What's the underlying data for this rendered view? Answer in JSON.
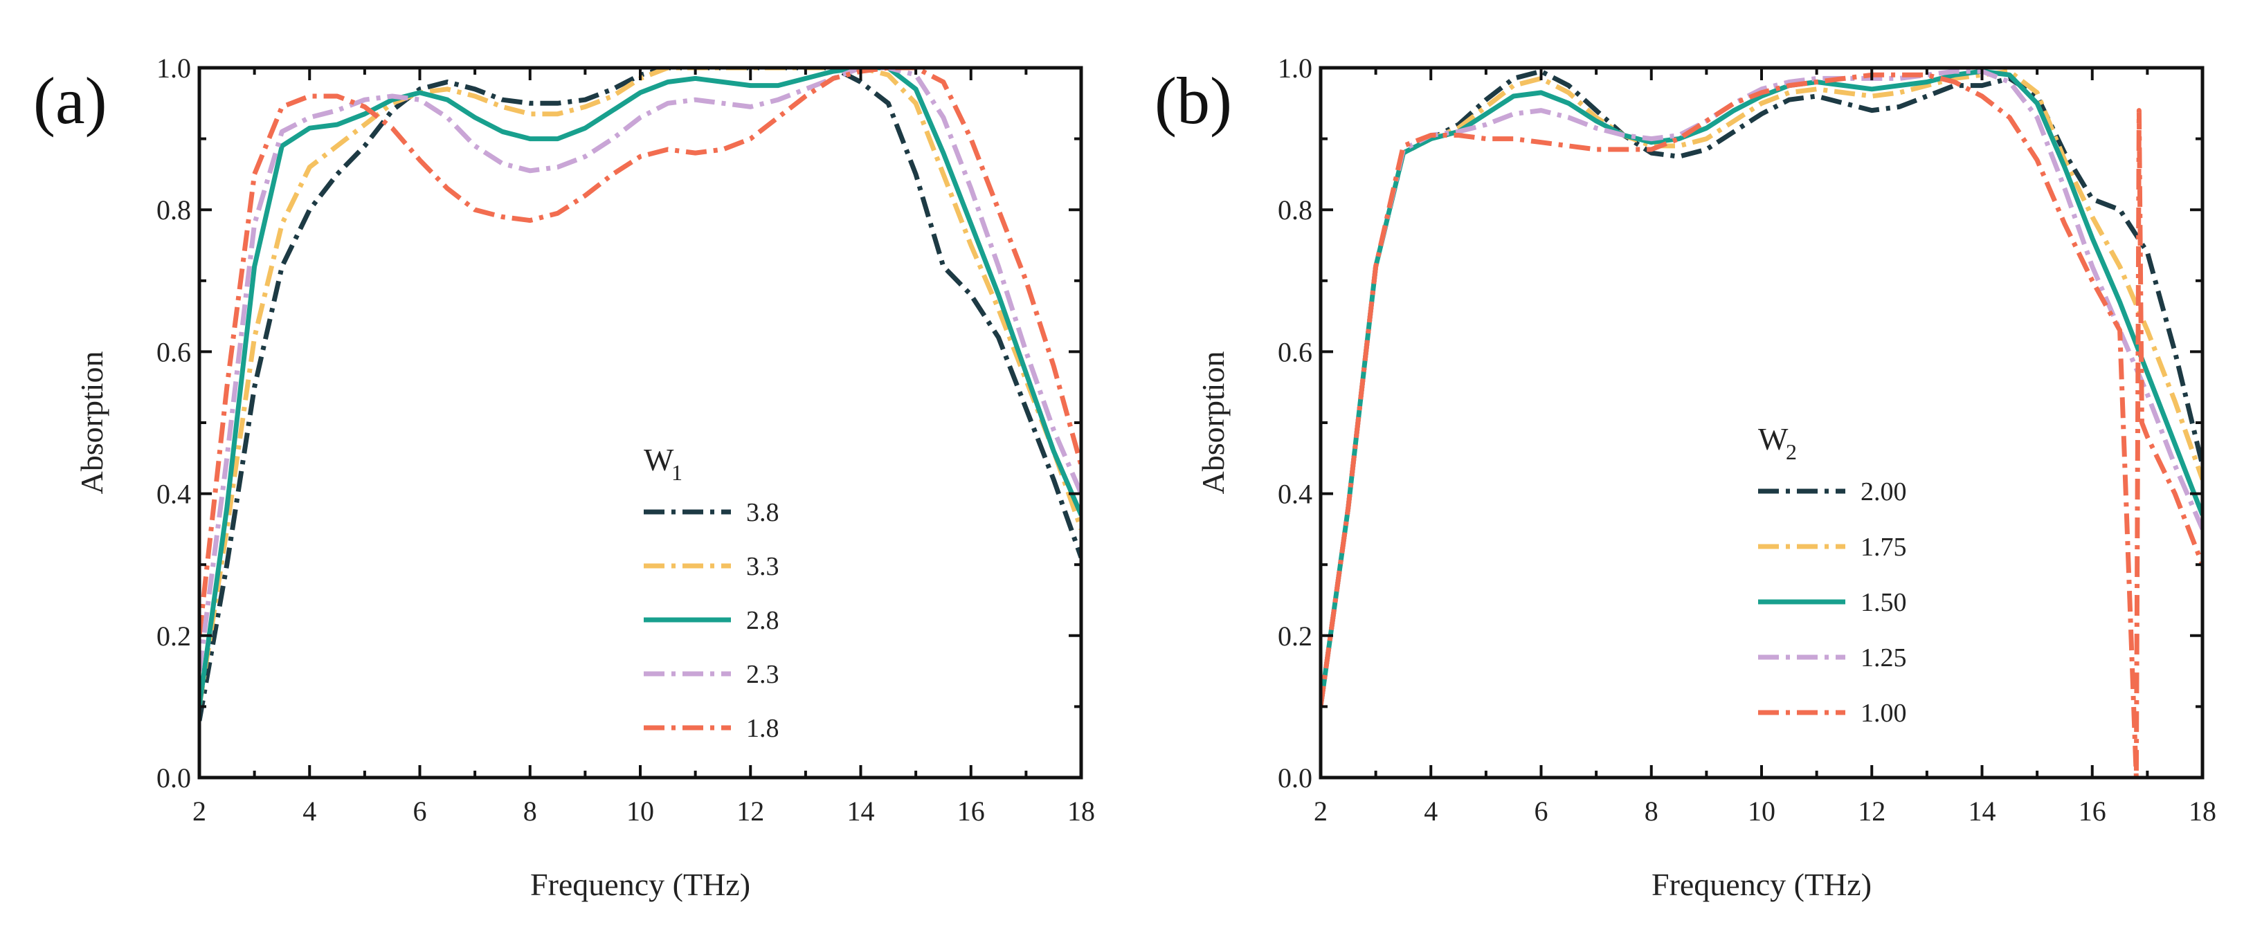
{
  "chart_data": [
    {
      "type": "line",
      "panel_label": "(a)",
      "xlabel": "Frequency (THz)",
      "ylabel": "Absorption",
      "xlim": [
        2,
        18
      ],
      "ylim": [
        0,
        1.0
      ],
      "xticks": [
        2,
        4,
        6,
        8,
        10,
        12,
        14,
        16,
        18
      ],
      "xtick_labels": [
        "2",
        "4",
        "6",
        "8",
        "10",
        "12",
        "14",
        "16",
        "18"
      ],
      "yticks": [
        0,
        0.2,
        0.4,
        0.6,
        0.8,
        1.0
      ],
      "ytick_labels": [
        "0.0",
        "0.2",
        "0.4",
        "0.6",
        "0.8",
        "1.0"
      ],
      "grid": false,
      "legend": {
        "title": "W",
        "title_sub": "1",
        "placement": "center"
      },
      "series": [
        {
          "name": "3.8",
          "color": "#1d3a44",
          "dash": "dashdot",
          "x": [
            2,
            2.5,
            3,
            3.5,
            4,
            4.5,
            5,
            5.5,
            6,
            6.5,
            7,
            7.5,
            8,
            8.5,
            9,
            9.5,
            10,
            10.5,
            11,
            11.5,
            12,
            12.5,
            13,
            13.5,
            14,
            14.5,
            15,
            15.5,
            16,
            16.5,
            17,
            17.5,
            18
          ],
          "y": [
            0.08,
            0.3,
            0.55,
            0.72,
            0.8,
            0.85,
            0.89,
            0.94,
            0.97,
            0.98,
            0.97,
            0.955,
            0.95,
            0.95,
            0.955,
            0.97,
            0.99,
            1.0,
            1.0,
            1.0,
            1.0,
            1.0,
            1.0,
            1.0,
            0.98,
            0.95,
            0.85,
            0.72,
            0.68,
            0.62,
            0.52,
            0.42,
            0.31
          ]
        },
        {
          "name": "3.3",
          "color": "#f5c160",
          "dash": "dashdot",
          "x": [
            2,
            2.5,
            3,
            3.5,
            4,
            4.5,
            5,
            5.5,
            6,
            6.5,
            7,
            7.5,
            8,
            8.5,
            9,
            9.5,
            10,
            10.5,
            11,
            11.5,
            12,
            12.5,
            13,
            13.5,
            14,
            14.5,
            15,
            15.5,
            16,
            16.5,
            17,
            17.5,
            18
          ],
          "y": [
            0.1,
            0.35,
            0.62,
            0.78,
            0.86,
            0.89,
            0.92,
            0.95,
            0.965,
            0.97,
            0.96,
            0.945,
            0.935,
            0.935,
            0.945,
            0.96,
            0.985,
            1.0,
            1.0,
            1.0,
            1.0,
            1.0,
            1.0,
            1.0,
            1.0,
            0.99,
            0.95,
            0.85,
            0.75,
            0.66,
            0.56,
            0.46,
            0.35
          ]
        },
        {
          "name": "2.8",
          "color": "#18a08e",
          "dash": "solid",
          "x": [
            2,
            2.5,
            3,
            3.5,
            4,
            4.5,
            5,
            5.5,
            6,
            6.5,
            7,
            7.5,
            8,
            8.5,
            9,
            9.5,
            10,
            10.5,
            11,
            11.5,
            12,
            12.5,
            13,
            13.5,
            14,
            14.5,
            15,
            15.5,
            16,
            16.5,
            17,
            17.5,
            18
          ],
          "y": [
            0.1,
            0.38,
            0.72,
            0.89,
            0.915,
            0.92,
            0.935,
            0.955,
            0.965,
            0.955,
            0.93,
            0.91,
            0.9,
            0.9,
            0.915,
            0.94,
            0.965,
            0.98,
            0.985,
            0.98,
            0.975,
            0.975,
            0.985,
            0.995,
            1.0,
            1.0,
            0.97,
            0.88,
            0.78,
            0.68,
            0.57,
            0.46,
            0.37
          ]
        },
        {
          "name": "2.3",
          "color": "#c9a5d6",
          "dash": "dashdot",
          "x": [
            2,
            2.5,
            3,
            3.5,
            4,
            4.5,
            5,
            5.5,
            6,
            6.5,
            7,
            7.5,
            8,
            8.5,
            9,
            9.5,
            10,
            10.5,
            11,
            11.5,
            12,
            12.5,
            13,
            13.5,
            14,
            14.5,
            15,
            15.5,
            16,
            16.5,
            17,
            17.5,
            18
          ],
          "y": [
            0.15,
            0.45,
            0.78,
            0.91,
            0.93,
            0.94,
            0.955,
            0.96,
            0.955,
            0.93,
            0.89,
            0.865,
            0.855,
            0.86,
            0.875,
            0.9,
            0.93,
            0.95,
            0.955,
            0.95,
            0.945,
            0.955,
            0.97,
            0.985,
            1.0,
            1.0,
            0.99,
            0.93,
            0.83,
            0.72,
            0.6,
            0.49,
            0.4
          ]
        },
        {
          "name": "1.8",
          "color": "#f26d50",
          "dash": "dashdot",
          "x": [
            2,
            2.5,
            3,
            3.5,
            4,
            4.5,
            5,
            5.5,
            6,
            6.5,
            7,
            7.5,
            8,
            8.5,
            9,
            9.5,
            10,
            10.5,
            11,
            11.5,
            12,
            12.5,
            13,
            13.5,
            14,
            14.5,
            15,
            15.5,
            16,
            16.5,
            17,
            17.5,
            18
          ],
          "y": [
            0.2,
            0.55,
            0.85,
            0.945,
            0.96,
            0.96,
            0.945,
            0.915,
            0.87,
            0.83,
            0.8,
            0.79,
            0.785,
            0.795,
            0.82,
            0.85,
            0.875,
            0.885,
            0.88,
            0.885,
            0.9,
            0.93,
            0.96,
            0.985,
            0.995,
            1.0,
            1.0,
            0.98,
            0.9,
            0.8,
            0.7,
            0.58,
            0.44
          ]
        }
      ]
    },
    {
      "type": "line",
      "panel_label": "(b)",
      "xlabel": "Frequency (THz)",
      "ylabel": "Absorption",
      "xlim": [
        2,
        18
      ],
      "ylim": [
        0,
        1.0
      ],
      "xticks": [
        2,
        4,
        6,
        8,
        10,
        12,
        14,
        16,
        18
      ],
      "xtick_labels": [
        "2",
        "4",
        "6",
        "8",
        "10",
        "12",
        "14",
        "16",
        "18"
      ],
      "yticks": [
        0,
        0.2,
        0.4,
        0.6,
        0.8,
        1.0
      ],
      "ytick_labels": [
        "0.0",
        "0.2",
        "0.4",
        "0.6",
        "0.8",
        "1.0"
      ],
      "grid": false,
      "legend": {
        "title": "W",
        "title_sub": "2",
        "placement": "center"
      },
      "series": [
        {
          "name": "2.00",
          "color": "#1d3a44",
          "dash": "dashdot",
          "x": [
            2,
            2.5,
            3,
            3.5,
            4,
            4.5,
            5,
            5.5,
            6,
            6.5,
            7,
            7.5,
            8,
            8.5,
            9,
            9.5,
            10,
            10.5,
            11,
            11.5,
            12,
            12.5,
            13,
            13.5,
            14,
            14.5,
            15,
            15.5,
            16,
            16.5,
            17,
            17.5,
            18
          ],
          "y": [
            0.1,
            0.38,
            0.72,
            0.88,
            0.9,
            0.92,
            0.955,
            0.985,
            0.995,
            0.975,
            0.94,
            0.905,
            0.88,
            0.875,
            0.885,
            0.91,
            0.935,
            0.955,
            0.96,
            0.95,
            0.94,
            0.945,
            0.96,
            0.975,
            0.975,
            0.985,
            0.96,
            0.88,
            0.815,
            0.8,
            0.74,
            0.6,
            0.44
          ]
        },
        {
          "name": "1.75",
          "color": "#f5c160",
          "dash": "dashdot",
          "x": [
            2,
            2.5,
            3,
            3.5,
            4,
            4.5,
            5,
            5.5,
            6,
            6.5,
            7,
            7.5,
            8,
            8.5,
            9,
            9.5,
            10,
            10.5,
            11,
            11.5,
            12,
            12.5,
            13,
            13.5,
            14,
            14.5,
            15,
            15.5,
            16,
            16.5,
            17,
            17.5,
            18
          ],
          "y": [
            0.1,
            0.38,
            0.72,
            0.88,
            0.9,
            0.915,
            0.945,
            0.975,
            0.985,
            0.965,
            0.93,
            0.905,
            0.89,
            0.89,
            0.9,
            0.925,
            0.95,
            0.965,
            0.97,
            0.965,
            0.96,
            0.965,
            0.975,
            0.985,
            0.99,
            0.995,
            0.965,
            0.87,
            0.79,
            0.72,
            0.63,
            0.53,
            0.42
          ]
        },
        {
          "name": "1.50",
          "color": "#18a08e",
          "dash": "solid",
          "x": [
            2,
            2.5,
            3,
            3.5,
            4,
            4.5,
            5,
            5.5,
            6,
            6.5,
            7,
            7.5,
            8,
            8.5,
            9,
            9.5,
            10,
            10.5,
            11,
            11.5,
            12,
            12.5,
            13,
            13.5,
            14,
            14.5,
            15,
            15.5,
            16,
            16.5,
            17,
            17.5,
            18
          ],
          "y": [
            0.1,
            0.38,
            0.72,
            0.88,
            0.9,
            0.91,
            0.935,
            0.96,
            0.965,
            0.95,
            0.925,
            0.905,
            0.895,
            0.9,
            0.915,
            0.94,
            0.96,
            0.975,
            0.98,
            0.975,
            0.97,
            0.975,
            0.98,
            0.99,
            0.995,
            0.99,
            0.95,
            0.86,
            0.76,
            0.67,
            0.57,
            0.47,
            0.37
          ]
        },
        {
          "name": "1.25",
          "color": "#c9a5d6",
          "dash": "dashdot",
          "x": [
            2,
            2.5,
            3,
            3.5,
            4,
            4.5,
            5,
            5.5,
            6,
            6.5,
            7,
            7.5,
            8,
            8.5,
            9,
            9.5,
            10,
            10.5,
            11,
            11.5,
            12,
            12.5,
            13,
            13.5,
            14,
            14.5,
            15,
            15.5,
            16,
            16.5,
            17,
            17.5,
            18
          ],
          "y": [
            0.1,
            0.38,
            0.72,
            0.885,
            0.905,
            0.91,
            0.92,
            0.935,
            0.94,
            0.93,
            0.915,
            0.905,
            0.9,
            0.905,
            0.925,
            0.95,
            0.97,
            0.98,
            0.985,
            0.985,
            0.985,
            0.985,
            0.99,
            0.995,
            0.995,
            0.98,
            0.93,
            0.83,
            0.72,
            0.63,
            0.54,
            0.44,
            0.35
          ]
        },
        {
          "name": "1.00",
          "color": "#f26d50",
          "dash": "dashdot",
          "x": [
            2,
            2.5,
            3,
            3.5,
            4,
            4.5,
            5,
            5.5,
            6,
            6.5,
            7,
            7.5,
            8,
            8.5,
            9,
            9.5,
            10,
            10.5,
            11,
            11.5,
            12,
            12.5,
            13,
            13.5,
            14,
            14.5,
            15,
            15.5,
            16,
            16.5,
            16.8,
            16.85,
            16.9,
            17,
            17.5,
            18
          ],
          "y": [
            0.1,
            0.38,
            0.72,
            0.89,
            0.905,
            0.905,
            0.9,
            0.9,
            0.895,
            0.89,
            0.885,
            0.885,
            0.885,
            0.9,
            0.925,
            0.95,
            0.965,
            0.975,
            0.98,
            0.985,
            0.99,
            0.99,
            0.99,
            0.98,
            0.96,
            0.93,
            0.87,
            0.78,
            0.7,
            0.63,
            0.0,
            0.94,
            0.5,
            0.48,
            0.4,
            0.3
          ]
        }
      ]
    }
  ]
}
